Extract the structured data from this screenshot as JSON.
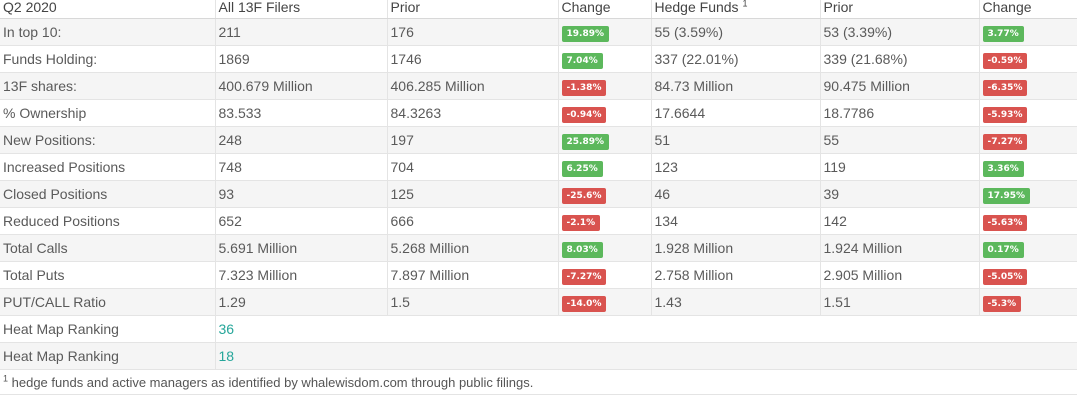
{
  "headers": [
    "Q2 2020",
    "All 13F Filers",
    "Prior",
    "Change",
    "Hedge Funds",
    "Prior",
    "Change"
  ],
  "hedge_funds_footnote_marker": "1",
  "rows": [
    {
      "label": "In top 10:",
      "all": "211",
      "all_prior": "176",
      "all_change": "19.89%",
      "all_dir": "up",
      "hf": "55 (3.59%)",
      "hf_prior": "53 (3.39%)",
      "hf_change": "3.77%",
      "hf_dir": "up"
    },
    {
      "label": "Funds Holding:",
      "all": "1869",
      "all_prior": "1746",
      "all_change": "7.04%",
      "all_dir": "up",
      "hf": "337 (22.01%)",
      "hf_prior": "339 (21.68%)",
      "hf_change": "-0.59%",
      "hf_dir": "down"
    },
    {
      "label": "13F shares:",
      "all": "400.679 Million",
      "all_prior": "406.285 Million",
      "all_change": "-1.38%",
      "all_dir": "down",
      "hf": "84.73 Million",
      "hf_prior": "90.475 Million",
      "hf_change": "-6.35%",
      "hf_dir": "down"
    },
    {
      "label": "% Ownership",
      "all": "83.533",
      "all_prior": "84.3263",
      "all_change": "-0.94%",
      "all_dir": "down",
      "hf": "17.6644",
      "hf_prior": "18.7786",
      "hf_change": "-5.93%",
      "hf_dir": "down"
    },
    {
      "label": "New Positions:",
      "all": "248",
      "all_prior": "197",
      "all_change": "25.89%",
      "all_dir": "up",
      "hf": "51",
      "hf_prior": "55",
      "hf_change": "-7.27%",
      "hf_dir": "down"
    },
    {
      "label": "Increased Positions",
      "all": "748",
      "all_prior": "704",
      "all_change": "6.25%",
      "all_dir": "up",
      "hf": "123",
      "hf_prior": "119",
      "hf_change": "3.36%",
      "hf_dir": "up"
    },
    {
      "label": "Closed Positions",
      "all": "93",
      "all_prior": "125",
      "all_change": "-25.6%",
      "all_dir": "down",
      "hf": "46",
      "hf_prior": "39",
      "hf_change": "17.95%",
      "hf_dir": "up"
    },
    {
      "label": "Reduced Positions",
      "all": "652",
      "all_prior": "666",
      "all_change": "-2.1%",
      "all_dir": "down",
      "hf": "134",
      "hf_prior": "142",
      "hf_change": "-5.63%",
      "hf_dir": "down"
    },
    {
      "label": "Total Calls",
      "all": "5.691 Million",
      "all_prior": "5.268 Million",
      "all_change": "8.03%",
      "all_dir": "up",
      "hf": "1.928 Million",
      "hf_prior": "1.924 Million",
      "hf_change": "0.17%",
      "hf_dir": "up"
    },
    {
      "label": "Total Puts",
      "all": "7.323 Million",
      "all_prior": "7.897 Million",
      "all_change": "-7.27%",
      "all_dir": "down",
      "hf": "2.758 Million",
      "hf_prior": "2.905 Million",
      "hf_change": "-5.05%",
      "hf_dir": "down"
    },
    {
      "label": "PUT/CALL Ratio",
      "all": "1.29",
      "all_prior": "1.5",
      "all_change": "-14.0%",
      "all_dir": "down",
      "hf": "1.43",
      "hf_prior": "1.51",
      "hf_change": "-5.3%",
      "hf_dir": "down"
    }
  ],
  "heat_map": [
    {
      "label": "Heat Map Ranking",
      "value": "36"
    },
    {
      "label": "Heat Map Ranking",
      "value": "18"
    }
  ],
  "footnote": {
    "marker": "1",
    "text": " hedge funds and active managers as identified by whalewisdom.com through public filings."
  },
  "colors": {
    "up": "#5cb85c",
    "down": "#d9534f",
    "rank": "#26a69a"
  }
}
